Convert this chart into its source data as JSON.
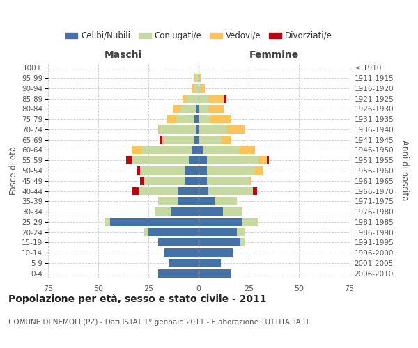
{
  "age_groups": [
    "0-4",
    "5-9",
    "10-14",
    "15-19",
    "20-24",
    "25-29",
    "30-34",
    "35-39",
    "40-44",
    "45-49",
    "50-54",
    "55-59",
    "60-64",
    "65-69",
    "70-74",
    "75-79",
    "80-84",
    "85-89",
    "90-94",
    "95-99",
    "100+"
  ],
  "birth_years": [
    "2006-2010",
    "2001-2005",
    "1996-2000",
    "1991-1995",
    "1986-1990",
    "1981-1985",
    "1976-1980",
    "1971-1975",
    "1966-1970",
    "1961-1965",
    "1956-1960",
    "1951-1955",
    "1946-1950",
    "1941-1945",
    "1936-1940",
    "1931-1935",
    "1926-1930",
    "1921-1925",
    "1916-1920",
    "1911-1915",
    "≤ 1910"
  ],
  "maschi": {
    "celibi": [
      20,
      15,
      17,
      20,
      25,
      44,
      14,
      10,
      10,
      7,
      7,
      5,
      3,
      2,
      1,
      2,
      1,
      0,
      0,
      0,
      0
    ],
    "coniugati": [
      0,
      0,
      0,
      0,
      2,
      3,
      8,
      10,
      20,
      20,
      22,
      28,
      25,
      15,
      18,
      9,
      8,
      6,
      2,
      1,
      0
    ],
    "vedovi": [
      0,
      0,
      0,
      0,
      0,
      0,
      0,
      0,
      0,
      0,
      0,
      0,
      5,
      1,
      1,
      5,
      4,
      2,
      1,
      1,
      0
    ],
    "divorziati": [
      0,
      0,
      0,
      0,
      0,
      0,
      0,
      0,
      3,
      2,
      2,
      3,
      0,
      1,
      0,
      0,
      0,
      0,
      0,
      0,
      0
    ]
  },
  "femmine": {
    "nubili": [
      16,
      11,
      17,
      21,
      19,
      22,
      12,
      8,
      5,
      4,
      4,
      4,
      2,
      0,
      0,
      0,
      0,
      0,
      0,
      0,
      0
    ],
    "coniugate": [
      0,
      0,
      0,
      2,
      4,
      8,
      10,
      11,
      22,
      21,
      24,
      26,
      18,
      11,
      14,
      6,
      5,
      5,
      1,
      0,
      0
    ],
    "vedove": [
      0,
      0,
      0,
      0,
      0,
      0,
      0,
      0,
      0,
      1,
      4,
      4,
      8,
      5,
      9,
      10,
      8,
      8,
      2,
      1,
      0
    ],
    "divorziate": [
      0,
      0,
      0,
      0,
      0,
      0,
      0,
      0,
      2,
      0,
      0,
      1,
      0,
      0,
      0,
      0,
      0,
      1,
      0,
      0,
      0
    ]
  },
  "color_celibi": "#4472a8",
  "color_coniugati": "#c5d9a0",
  "color_vedovi": "#fac45a",
  "color_divorziati": "#c0000c",
  "title": "Popolazione per età, sesso e stato civile - 2011",
  "subtitle": "COMUNE DI NEMOLI (PZ) - Dati ISTAT 1° gennaio 2011 - Elaborazione TUTTITALIA.IT",
  "xlabel_left": "Maschi",
  "xlabel_right": "Femmine",
  "ylabel_left": "Fasce di età",
  "ylabel_right": "Anni di nascita",
  "xlim": 75,
  "bg_color": "#ffffff",
  "grid_color": "#cccccc"
}
